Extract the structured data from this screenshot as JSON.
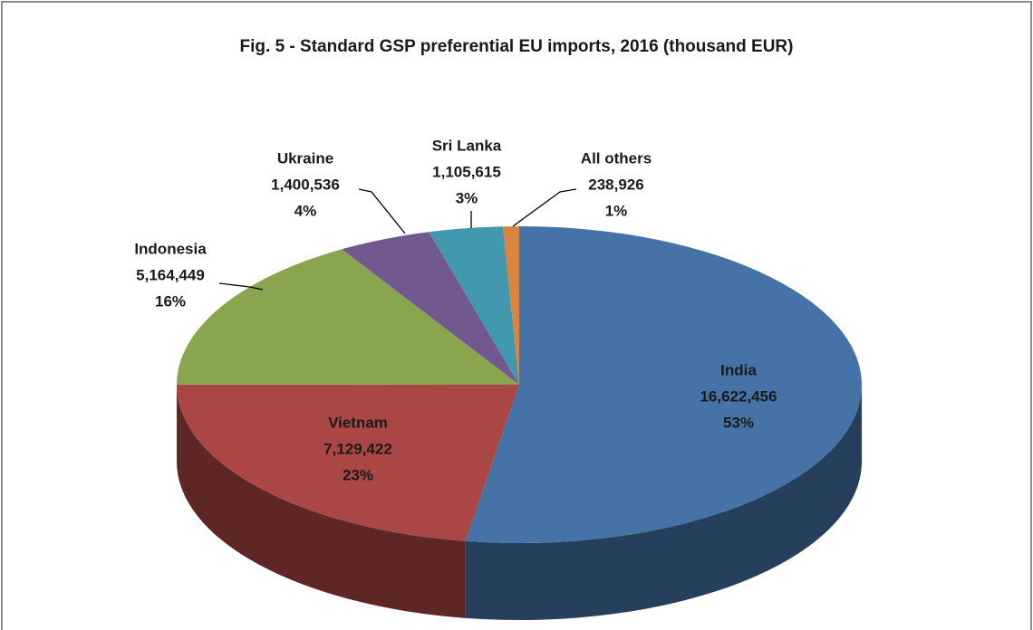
{
  "chart_data": {
    "type": "pie3d",
    "title": "Fig. 5 - Standard GSP preferential EU imports, 2016 (thousand EUR)",
    "categories": [
      "India",
      "Vietnam",
      "Indonesia",
      "Ukraine",
      "Sri Lanka",
      "All others"
    ],
    "values": [
      16622456,
      7129422,
      5164449,
      1400536,
      1105615,
      238926
    ],
    "value_labels": [
      "16,622,456",
      "7,129,422",
      "5,164,449",
      "1,400,536",
      "1,105,615",
      "238,926"
    ],
    "percents": [
      53,
      23,
      16,
      4,
      3,
      1
    ],
    "percent_labels": [
      "53%",
      "23%",
      "16%",
      "4%",
      "3%",
      "1%"
    ],
    "colors": [
      "#4572a7",
      "#aa4643",
      "#89a54e",
      "#71588f",
      "#4198af",
      "#db843d"
    ]
  }
}
